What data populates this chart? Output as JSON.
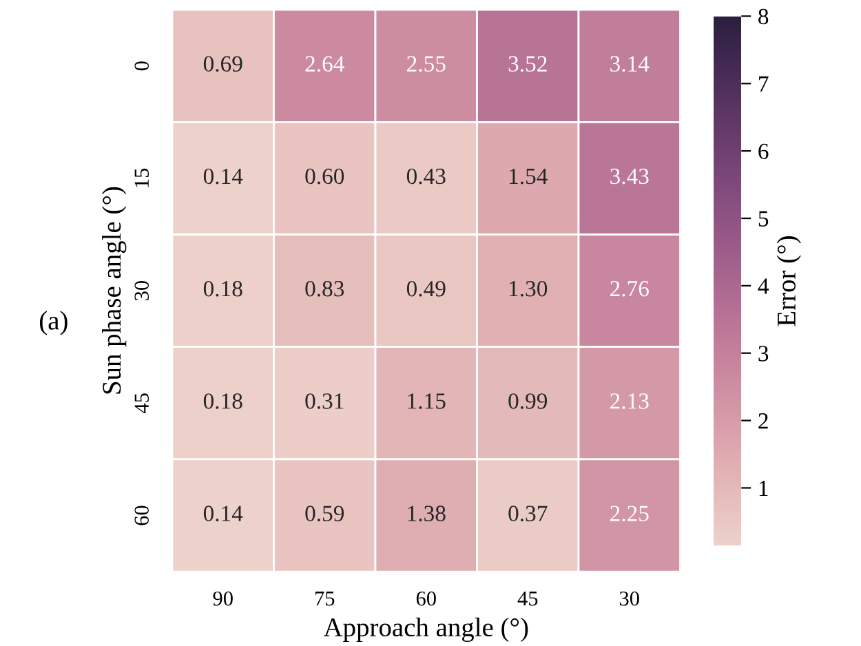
{
  "chart_data": {
    "type": "heatmap",
    "xlabel": "Approach angle (°)",
    "ylabel": "Sun phase angle (°)",
    "clabel": "Error (°)",
    "categories": [
      "90",
      "75",
      "60",
      "45",
      "30"
    ],
    "y_categories": [
      "0",
      "15",
      "30",
      "45",
      "60"
    ],
    "cells": [
      [
        0.69,
        2.64,
        2.55,
        3.52,
        3.14
      ],
      [
        0.14,
        0.6,
        0.43,
        1.54,
        3.43
      ],
      [
        0.18,
        0.83,
        0.49,
        1.3,
        2.76
      ],
      [
        0.18,
        0.31,
        1.15,
        0.99,
        2.13
      ],
      [
        0.14,
        0.59,
        1.38,
        0.37,
        2.25
      ]
    ],
    "cell_labels": [
      [
        "0.69",
        "2.64",
        "2.55",
        "3.52",
        "3.14"
      ],
      [
        "0.14",
        "0.60",
        "0.43",
        "1.54",
        "3.43"
      ],
      [
        "0.18",
        "0.83",
        "0.49",
        "1.30",
        "2.76"
      ],
      [
        "0.18",
        "0.31",
        "1.15",
        "0.99",
        "2.13"
      ],
      [
        "0.14",
        "0.59",
        "1.38",
        "0.37",
        "2.25"
      ]
    ],
    "clim": [
      0.14,
      8
    ],
    "cticks": [
      1,
      2,
      3,
      4,
      5,
      6,
      7,
      8
    ],
    "data_labels": true,
    "annotations": [
      "(a)"
    ]
  }
}
